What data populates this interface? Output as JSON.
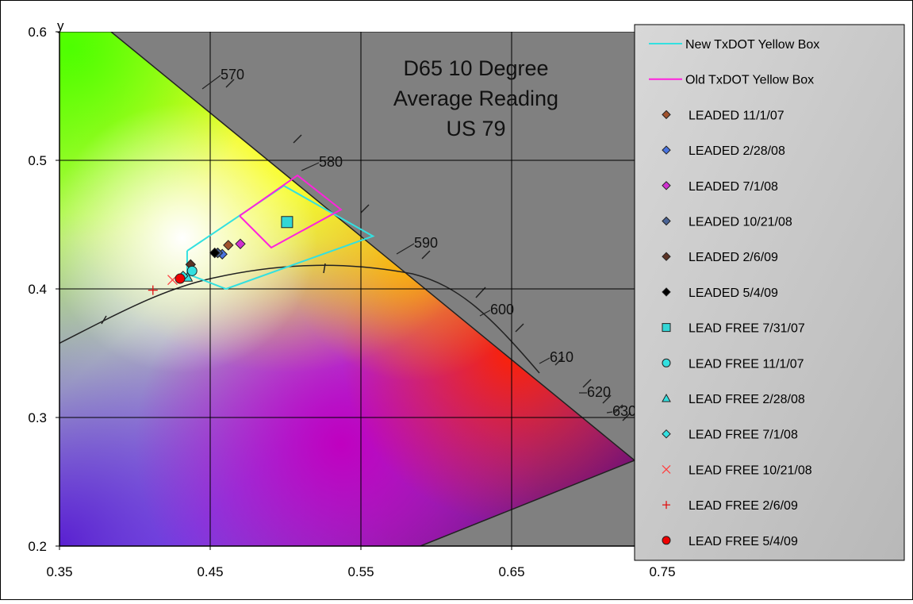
{
  "chart_data": {
    "type": "scatter",
    "title": [
      "D65 10 Degree",
      "Average Reading",
      "US 79"
    ],
    "y_label": "y",
    "xlim": [
      0.35,
      0.9
    ],
    "ylim": [
      0.2,
      0.6
    ],
    "xticks": [
      0.35,
      0.45,
      0.55,
      0.65,
      0.75
    ],
    "yticks": [
      0.2,
      0.3,
      0.4,
      0.5,
      0.6
    ],
    "grid": true,
    "legend": "right",
    "wavelength_labels": [
      "570",
      "580",
      "590",
      "600",
      "610",
      "620",
      "630"
    ],
    "series": [
      {
        "name": "New TxDOT Yellow Box",
        "type": "line",
        "color": "#33e0e0",
        "x": [
          0.4347,
          0.4989,
          0.558,
          0.4605,
          0.4347,
          0.4347
        ],
        "y": [
          0.4296,
          0.4802,
          0.441,
          0.4,
          0.4117,
          0.4296
        ]
      },
      {
        "name": "Old TxDOT Yellow Box",
        "type": "line",
        "color": "#ff22dd",
        "x": [
          0.4695,
          0.5079,
          0.5368,
          0.4905,
          0.4695
        ],
        "y": [
          0.4568,
          0.4883,
          0.4617,
          0.4321,
          0.4568
        ]
      },
      {
        "name": "LEADED 11/1/07",
        "marker": "diamond",
        "color": "#a0522d",
        "x": [
          0.462
        ],
        "y": [
          0.434
        ]
      },
      {
        "name": "LEADED 2/28/08",
        "marker": "diamond",
        "color": "#4a74e0",
        "x": [
          0.458
        ],
        "y": [
          0.427
        ]
      },
      {
        "name": "LEADED 7/1/08",
        "marker": "diamond",
        "color": "#d030d0",
        "x": [
          0.47
        ],
        "y": [
          0.435
        ]
      },
      {
        "name": "LEADED 10/21/08",
        "marker": "diamond",
        "color": "#4a6496",
        "x": [
          0.455
        ],
        "y": [
          0.428
        ]
      },
      {
        "name": "LEADED 2/6/09",
        "marker": "diamond",
        "color": "#5c3426",
        "x": [
          0.437
        ],
        "y": [
          0.419
        ]
      },
      {
        "name": "LEADED 5/4/09",
        "marker": "diamond",
        "color": "#000000",
        "x": [
          0.453
        ],
        "y": [
          0.428
        ]
      },
      {
        "name": "LEAD FREE 7/31/07",
        "marker": "square",
        "color": "#33d6d6",
        "x": [
          0.501
        ],
        "y": [
          0.452
        ]
      },
      {
        "name": "LEAD FREE 11/1/07",
        "marker": "circle",
        "color": "#33e0e0",
        "x": [
          0.438
        ],
        "y": [
          0.414
        ]
      },
      {
        "name": "LEAD FREE 2/28/08",
        "marker": "triangle",
        "color": "#33e0e0",
        "x": [
          0.435
        ],
        "y": [
          0.409
        ]
      },
      {
        "name": "LEAD FREE 7/1/08",
        "marker": "diamond",
        "color": "#33e0e0",
        "x": [
          0.432
        ],
        "y": [
          0.41
        ]
      },
      {
        "name": "LEAD FREE 10/21/08",
        "marker": "x",
        "color": "#ff4040",
        "x": [
          0.425
        ],
        "y": [
          0.407
        ]
      },
      {
        "name": "LEAD FREE 2/6/09",
        "marker": "plus",
        "color": "#e01010",
        "x": [
          0.412
        ],
        "y": [
          0.399
        ]
      },
      {
        "name": "LEAD FREE 5/4/09",
        "marker": "circle",
        "color": "#ee0000",
        "x": [
          0.43
        ],
        "y": [
          0.408
        ]
      }
    ]
  }
}
